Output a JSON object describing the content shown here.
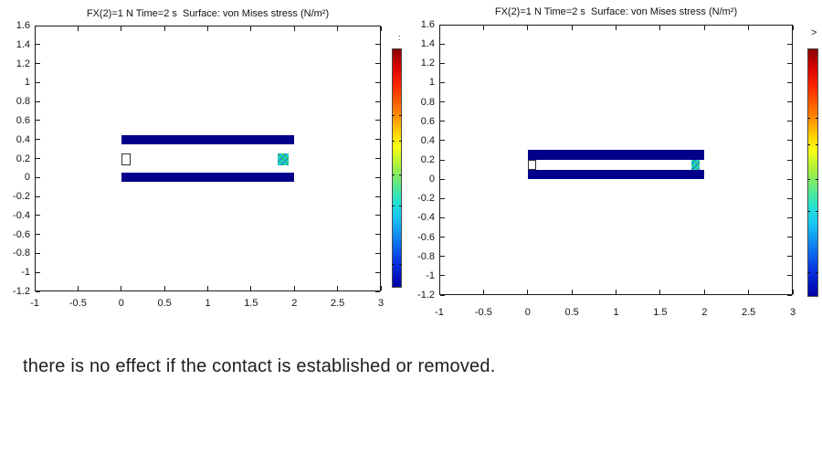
{
  "page": {
    "caption": "there is no effect if the contact is established or removed."
  },
  "colors": {
    "beam_navy": "#00008b",
    "axis": "#1a1a1a",
    "jet_stops": [
      "#8b0000 0%",
      "#d40000 7%",
      "#ff2600 15%",
      "#ff8400 27%",
      "#ffd900 36%",
      "#f8ff14 41%",
      "#a8f03c 49%",
      "#52e896 58%",
      "#22e2d2 64%",
      "#18c4f2 71%",
      "#0e7ef2 80%",
      "#082ee0 90%",
      "#0000a6 100%"
    ]
  },
  "chart_data": [
    {
      "type": "heatmap",
      "title": "FX(2)=1 N Time=2 s  Surface: von Mises stress (N/m²)",
      "xlabel": "",
      "ylabel": "",
      "xlim": [
        -1,
        3
      ],
      "ylim": [
        -1.2,
        1.6
      ],
      "x_ticks": [
        -1,
        -0.5,
        0,
        0.5,
        1,
        1.5,
        2,
        2.5,
        3
      ],
      "x_tick_labels": [
        "-1",
        "-0.5",
        "0",
        "0.5",
        "1",
        "1.5",
        "2",
        "2.5",
        "3"
      ],
      "y_ticks": [
        1.6,
        1.4,
        1.2,
        1,
        0.8,
        0.6,
        0.4,
        0.2,
        0,
        -0.2,
        -0.4,
        -0.6,
        -0.8,
        -1,
        -1.2
      ],
      "y_tick_labels": [
        "1.6",
        "1.4",
        "1.2",
        "1",
        "0.8",
        "0.6",
        "0.4",
        "0.2",
        "0",
        "-0.2",
        "-0.4",
        "-0.6",
        "-0.8",
        "-1",
        "-1.2"
      ],
      "grid": false,
      "legend": "colorbar-right",
      "note": "contact gap open: two separated navy beams with contact-pair markers between them",
      "shapes": [
        {
          "name": "upper-beam",
          "type": "rect",
          "x": [
            0,
            2
          ],
          "y": [
            0.35,
            0.45
          ],
          "fill": "#00008b"
        },
        {
          "name": "lower-beam",
          "type": "rect",
          "x": [
            0,
            2
          ],
          "y": [
            -0.05,
            0.05
          ],
          "fill": "#00008b"
        },
        {
          "name": "source-point-marker",
          "type": "rect",
          "x": [
            0,
            0.11
          ],
          "y": [
            0.13,
            0.25
          ],
          "fill": "#ffffff",
          "stroke": "#333333"
        },
        {
          "name": "contact-stress-patch",
          "type": "rect",
          "x": [
            1.81,
            1.93
          ],
          "y": [
            0.13,
            0.25
          ],
          "fill": "speckle"
        }
      ],
      "corner_glyph": ":"
    },
    {
      "type": "heatmap",
      "title": "FX(2)=1 N Time=2 s  Surface: von Mises stress (N/m²)",
      "xlabel": "",
      "ylabel": "",
      "xlim": [
        -1,
        3
      ],
      "ylim": [
        -1.2,
        1.6
      ],
      "x_ticks": [
        -1,
        -0.5,
        0,
        0.5,
        1,
        1.5,
        2,
        2.5,
        3
      ],
      "x_tick_labels": [
        "-1",
        "-0.5",
        "0",
        "0.5",
        "1",
        "1.5",
        "2",
        "2.5",
        "3"
      ],
      "y_ticks": [
        1.6,
        1.4,
        1.2,
        1,
        0.8,
        0.6,
        0.4,
        0.2,
        0,
        -0.2,
        -0.4,
        -0.6,
        -0.8,
        -1,
        -1.2
      ],
      "y_tick_labels": [
        "1.6",
        "1.4",
        "1.2",
        "1",
        "0.8",
        "0.6",
        "0.4",
        "0.2",
        "0",
        "-0.2",
        "-0.4",
        "-0.6",
        "-0.8",
        "-1",
        "-1.2"
      ],
      "grid": false,
      "legend": "colorbar-right",
      "note": "contact established: beams closed together with contact-pair markers in the joint",
      "shapes": [
        {
          "name": "upper-beam",
          "type": "rect",
          "x": [
            0,
            2
          ],
          "y": [
            0.2,
            0.3
          ],
          "fill": "#00008b"
        },
        {
          "name": "lower-beam",
          "type": "rect",
          "x": [
            0,
            2
          ],
          "y": [
            0,
            0.1
          ],
          "fill": "#00008b"
        },
        {
          "name": "source-point-marker",
          "type": "rect",
          "x": [
            0,
            0.1
          ],
          "y": [
            0.1,
            0.2
          ],
          "fill": "#ffffff",
          "stroke": "#333333"
        },
        {
          "name": "contact-stress-patch",
          "type": "rect",
          "x": [
            1.85,
            1.95
          ],
          "y": [
            0.1,
            0.2
          ],
          "fill": "speckle"
        }
      ],
      "corner_glyph": ">"
    }
  ]
}
